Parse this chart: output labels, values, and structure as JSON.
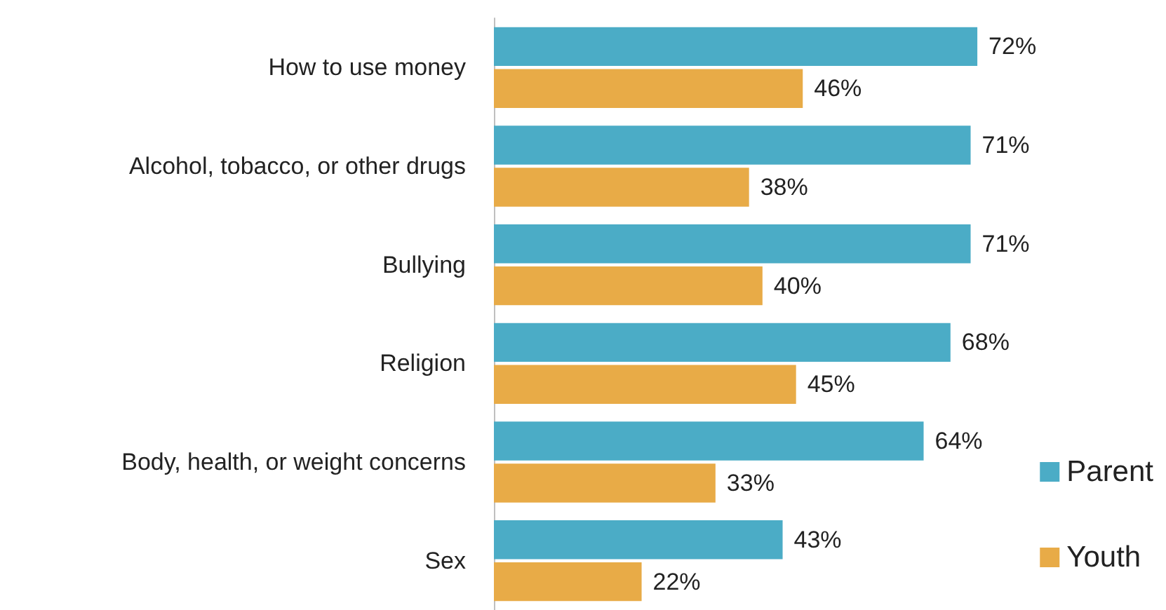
{
  "chart_data": {
    "type": "bar",
    "orientation": "horizontal",
    "categories": [
      "How to use money",
      "Alcohol, tobacco, or other drugs",
      "Bullying",
      "Religion",
      "Body, health, or weight concerns",
      "Sex"
    ],
    "series": [
      {
        "name": "Parent",
        "color": "#4bacc6",
        "values": [
          72,
          71,
          71,
          68,
          64,
          43
        ],
        "value_labels": [
          "72%",
          "71%",
          "71%",
          "68%",
          "64%",
          "43%"
        ]
      },
      {
        "name": "Youth",
        "color": "#e8ab47",
        "values": [
          46,
          38,
          40,
          45,
          33,
          22
        ],
        "value_labels": [
          "46%",
          "38%",
          "40%",
          "45%",
          "33%",
          "22%"
        ]
      }
    ],
    "legend": "bottom right"
  }
}
